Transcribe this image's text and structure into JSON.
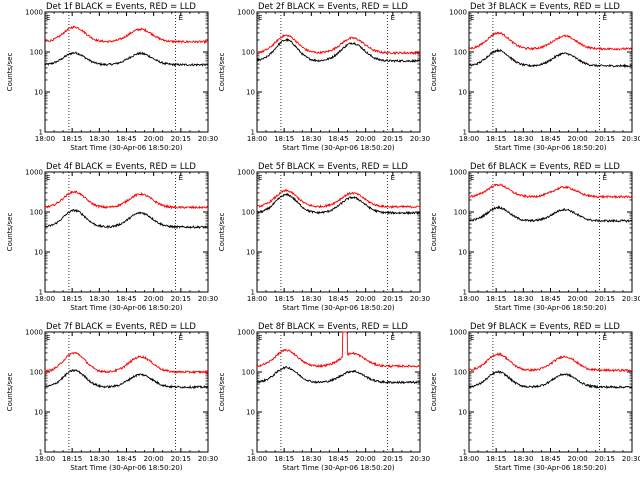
{
  "figure": {
    "background": "#ffffff",
    "event_color": "#000000",
    "lld_color": "#ff0000"
  },
  "chart_data": [
    {
      "type": "line",
      "title": "Det 1f BLACK = Events, RED = LLD",
      "xlabel": "Start Time (30-Apr-06 18:50:20)",
      "ylabel": "Counts/sec",
      "yscale": "log",
      "ylim": [
        1,
        1000
      ],
      "xticks": [
        "18:00",
        "18:15",
        "18:30",
        "18:45",
        "20:00",
        "20:15",
        "20:30"
      ],
      "xrange_min": [
        0,
        150
      ],
      "dotted_lines_min": [
        22,
        120
      ],
      "markers": [
        "E",
        "E"
      ],
      "marker_positions_min": [
        0,
        122
      ],
      "series": [
        {
          "name": "Events",
          "color": "#000000",
          "base": 48,
          "peak": 95,
          "amp1": 1.0,
          "amp2": 0.95
        },
        {
          "name": "LLD",
          "color": "#ff0000",
          "base": 180,
          "peak": 420,
          "amp1": 1.0,
          "amp2": 0.85
        }
      ],
      "spike": null
    },
    {
      "type": "line",
      "title": "Det 2f BLACK = Events, RED = LLD",
      "xlabel": "Start Time (30-Apr-06 18:50:20)",
      "ylabel": "Counts/sec",
      "yscale": "log",
      "ylim": [
        1,
        1000
      ],
      "xticks": [
        "18:00",
        "18:15",
        "18:30",
        "18:45",
        "20:00",
        "20:15",
        "20:30"
      ],
      "xrange_min": [
        0,
        150
      ],
      "dotted_lines_min": [
        22,
        120
      ],
      "markers": [
        "E",
        "E"
      ],
      "marker_positions_min": [
        0,
        122
      ],
      "series": [
        {
          "name": "Events",
          "color": "#000000",
          "base": 60,
          "peak": 200,
          "amp1": 1.0,
          "amp2": 0.85
        },
        {
          "name": "LLD",
          "color": "#ff0000",
          "base": 95,
          "peak": 260,
          "amp1": 1.0,
          "amp2": 0.85
        }
      ],
      "spike": null
    },
    {
      "type": "line",
      "title": "Det 3f BLACK = Events, RED = LLD",
      "xlabel": "Start Time (30-Apr-06 18:50:20)",
      "ylabel": "Counts/sec",
      "yscale": "log",
      "ylim": [
        1,
        1000
      ],
      "xticks": [
        "18:00",
        "18:15",
        "18:30",
        "18:45",
        "20:00",
        "20:15",
        "20:30"
      ],
      "xrange_min": [
        0,
        150
      ],
      "dotted_lines_min": [
        22,
        120
      ],
      "markers": [
        "E",
        "E"
      ],
      "marker_positions_min": [
        0,
        122
      ],
      "series": [
        {
          "name": "Events",
          "color": "#000000",
          "base": 45,
          "peak": 110,
          "amp1": 1.0,
          "amp2": 0.8
        },
        {
          "name": "LLD",
          "color": "#ff0000",
          "base": 120,
          "peak": 300,
          "amp1": 1.0,
          "amp2": 0.8
        }
      ],
      "spike": null
    },
    {
      "type": "line",
      "title": "Det 4f BLACK = Events, RED = LLD",
      "xlabel": "Start Time (30-Apr-06 18:50:20)",
      "ylabel": "Counts/sec",
      "yscale": "log",
      "ylim": [
        1,
        1000
      ],
      "xticks": [
        "18:00",
        "18:15",
        "18:30",
        "18:45",
        "20:00",
        "20:15",
        "20:30"
      ],
      "xrange_min": [
        0,
        150
      ],
      "dotted_lines_min": [
        22,
        120
      ],
      "markers": [
        "E",
        "E"
      ],
      "marker_positions_min": [
        0,
        122
      ],
      "series": [
        {
          "name": "Events",
          "color": "#000000",
          "base": 42,
          "peak": 110,
          "amp1": 1.0,
          "amp2": 0.85
        },
        {
          "name": "LLD",
          "color": "#ff0000",
          "base": 130,
          "peak": 320,
          "amp1": 1.0,
          "amp2": 0.85
        }
      ],
      "spike": null
    },
    {
      "type": "line",
      "title": "Det 5f BLACK = Events, RED = LLD",
      "xlabel": "Start Time (30-Apr-06 18:50:20)",
      "ylabel": "Counts/sec",
      "yscale": "log",
      "ylim": [
        1,
        1000
      ],
      "xticks": [
        "18:00",
        "18:15",
        "18:30",
        "18:45",
        "20:00",
        "20:15",
        "20:30"
      ],
      "xrange_min": [
        0,
        150
      ],
      "dotted_lines_min": [
        22,
        120
      ],
      "markers": [
        "E",
        "E"
      ],
      "marker_positions_min": [
        0,
        122
      ],
      "series": [
        {
          "name": "Events",
          "color": "#000000",
          "base": 95,
          "peak": 270,
          "amp1": 1.0,
          "amp2": 0.85
        },
        {
          "name": "LLD",
          "color": "#ff0000",
          "base": 135,
          "peak": 340,
          "amp1": 1.0,
          "amp2": 0.85
        }
      ],
      "spike": null
    },
    {
      "type": "line",
      "title": "Det 6f BLACK = Events, RED = LLD",
      "xlabel": "Start Time (30-Apr-06 18:50:20)",
      "ylabel": "Counts/sec",
      "yscale": "log",
      "ylim": [
        1,
        1000
      ],
      "xticks": [
        "18:00",
        "18:15",
        "18:30",
        "18:45",
        "20:00",
        "20:15",
        "20:30"
      ],
      "xrange_min": [
        0,
        150
      ],
      "dotted_lines_min": [
        22,
        120
      ],
      "markers": [
        "E",
        "E"
      ],
      "marker_positions_min": [
        0,
        122
      ],
      "series": [
        {
          "name": "Events",
          "color": "#000000",
          "base": 60,
          "peak": 130,
          "amp1": 1.0,
          "amp2": 0.85
        },
        {
          "name": "LLD",
          "color": "#ff0000",
          "base": 240,
          "peak": 480,
          "amp1": 1.0,
          "amp2": 0.8
        }
      ],
      "spike": null
    },
    {
      "type": "line",
      "title": "Det 7f BLACK = Events, RED = LLD",
      "xlabel": "Start Time (30-Apr-06 18:50:20)",
      "ylabel": "Counts/sec",
      "yscale": "log",
      "ylim": [
        1,
        1000
      ],
      "xticks": [
        "18:00",
        "18:15",
        "18:30",
        "18:45",
        "20:00",
        "20:15",
        "20:30"
      ],
      "xrange_min": [
        0,
        150
      ],
      "dotted_lines_min": [
        22,
        120
      ],
      "markers": [
        "E",
        "E"
      ],
      "marker_positions_min": [
        0,
        122
      ],
      "series": [
        {
          "name": "Events",
          "color": "#000000",
          "base": 42,
          "peak": 110,
          "amp1": 1.0,
          "amp2": 0.75
        },
        {
          "name": "LLD",
          "color": "#ff0000",
          "base": 100,
          "peak": 300,
          "amp1": 1.0,
          "amp2": 0.8
        }
      ],
      "spike": null
    },
    {
      "type": "line",
      "title": "Det 8f BLACK = Events, RED = LLD",
      "xlabel": "Start Time (30-Apr-06 18:50:20)",
      "ylabel": "Counts/sec",
      "yscale": "log",
      "ylim": [
        1,
        1000
      ],
      "xticks": [
        "18:00",
        "18:15",
        "18:30",
        "18:45",
        "20:00",
        "20:15",
        "20:30"
      ],
      "xrange_min": [
        0,
        150
      ],
      "dotted_lines_min": [
        22,
        120
      ],
      "markers": [
        "E",
        "E"
      ],
      "marker_positions_min": [
        0,
        122
      ],
      "series": [
        {
          "name": "Events",
          "color": "#000000",
          "base": 55,
          "peak": 130,
          "amp1": 1.0,
          "amp2": 0.75
        },
        {
          "name": "LLD",
          "color": "#ff0000",
          "base": 140,
          "peak": 350,
          "amp1": 1.0,
          "amp2": 0.8
        }
      ],
      "spike": {
        "start_min": 79,
        "end_min": 83,
        "value": 1000
      }
    },
    {
      "type": "line",
      "title": "Det 9f BLACK = Events, RED = LLD",
      "xlabel": "Start Time (30-Apr-06 18:50:20)",
      "ylabel": "Counts/sec",
      "yscale": "log",
      "ylim": [
        1,
        1000
      ],
      "xticks": [
        "18:00",
        "18:15",
        "18:30",
        "18:45",
        "20:00",
        "20:15",
        "20:30"
      ],
      "xrange_min": [
        0,
        150
      ],
      "dotted_lines_min": [
        22,
        120
      ],
      "markers": [
        "E",
        "E"
      ],
      "marker_positions_min": [
        0,
        122
      ],
      "series": [
        {
          "name": "Events",
          "color": "#000000",
          "base": 42,
          "peak": 100,
          "amp1": 1.0,
          "amp2": 0.85
        },
        {
          "name": "LLD",
          "color": "#ff0000",
          "base": 110,
          "peak": 280,
          "amp1": 1.0,
          "amp2": 0.85
        }
      ],
      "spike": null
    }
  ]
}
